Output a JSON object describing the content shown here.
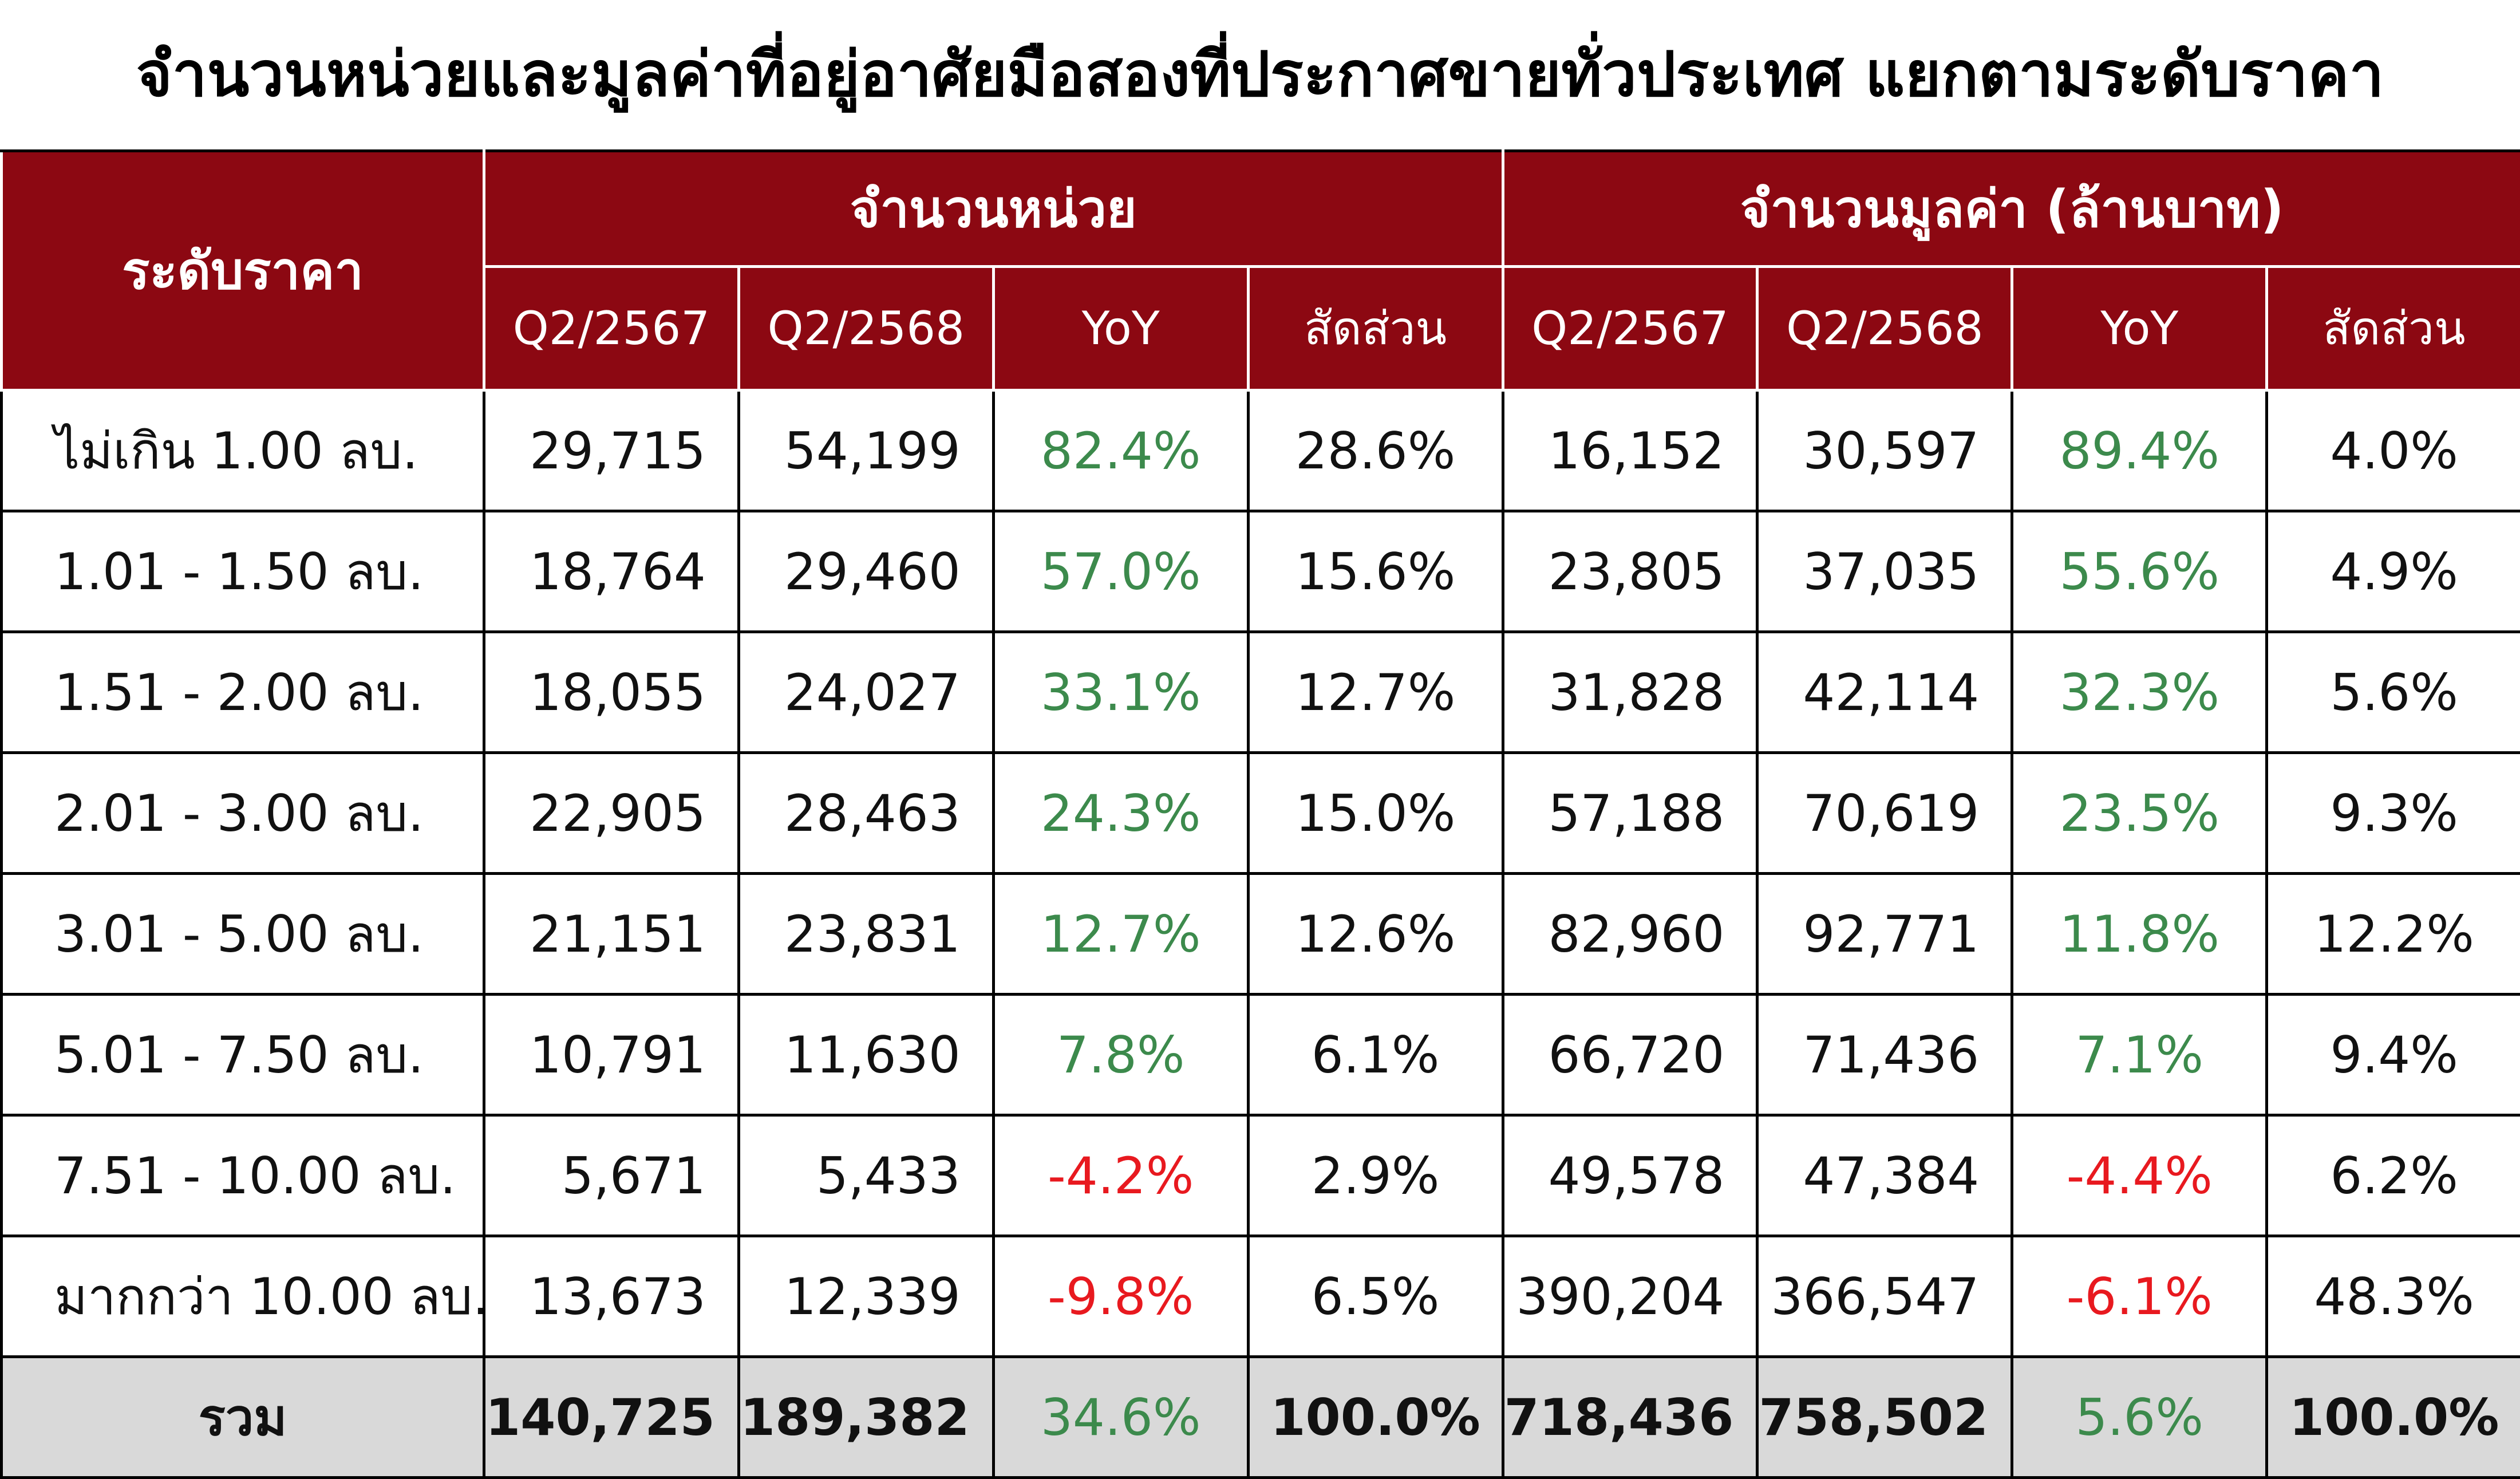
{
  "title": "จำนวนหน่วยและมูลค่าที่อยู่อาศัยมือสองที่ประกาศขายทั่วประเทศ แยกตามระดับราคา",
  "table": {
    "header": {
      "first": "ระดับราคา",
      "groups": [
        "จำนวนหน่วย",
        "จำนวนมูลค่า (ล้านบาท)"
      ],
      "columns": [
        "Q2/2567",
        "Q2/2568",
        "YoY",
        "สัดส่วน",
        "Q2/2567",
        "Q2/2568",
        "YoY",
        "สัดส่วน"
      ]
    },
    "rows": [
      [
        "ไม่เกิน 1.00 ลบ.",
        "29,715",
        "54,199",
        "82.4%",
        "28.6%",
        "16,152",
        "30,597",
        "89.4%",
        "4.0%"
      ],
      [
        "1.01 - 1.50 ลบ.",
        "18,764",
        "29,460",
        "57.0%",
        "15.6%",
        "23,805",
        "37,035",
        "55.6%",
        "4.9%"
      ],
      [
        "1.51 - 2.00 ลบ.",
        "18,055",
        "24,027",
        "33.1%",
        "12.7%",
        "31,828",
        "42,114",
        "32.3%",
        "5.6%"
      ],
      [
        "2.01 - 3.00 ลบ.",
        "22,905",
        "28,463",
        "24.3%",
        "15.0%",
        "57,188",
        "70,619",
        "23.5%",
        "9.3%"
      ],
      [
        "3.01 - 5.00 ลบ.",
        "21,151",
        "23,831",
        "12.7%",
        "12.6%",
        "82,960",
        "92,771",
        "11.8%",
        "12.2%"
      ],
      [
        "5.01 - 7.50 ลบ.",
        "10,791",
        "11,630",
        "7.8%",
        "6.1%",
        "66,720",
        "71,436",
        "7.1%",
        "9.4%"
      ],
      [
        "7.51 - 10.00 ลบ.",
        "5,671",
        "5,433",
        "-4.2%",
        "2.9%",
        "49,578",
        "47,384",
        "-4.4%",
        "6.2%"
      ],
      [
        "มากกว่า 10.00 ลบ.",
        "13,673",
        "12,339",
        "-9.8%",
        "6.5%",
        "390,204",
        "366,547",
        "-6.1%",
        "48.3%"
      ]
    ],
    "total": [
      "รวม",
      "140,725",
      "189,382",
      "34.6%",
      "100.0%",
      "718,436",
      "758,502",
      "5.6%",
      "100.0%"
    ]
  }
}
